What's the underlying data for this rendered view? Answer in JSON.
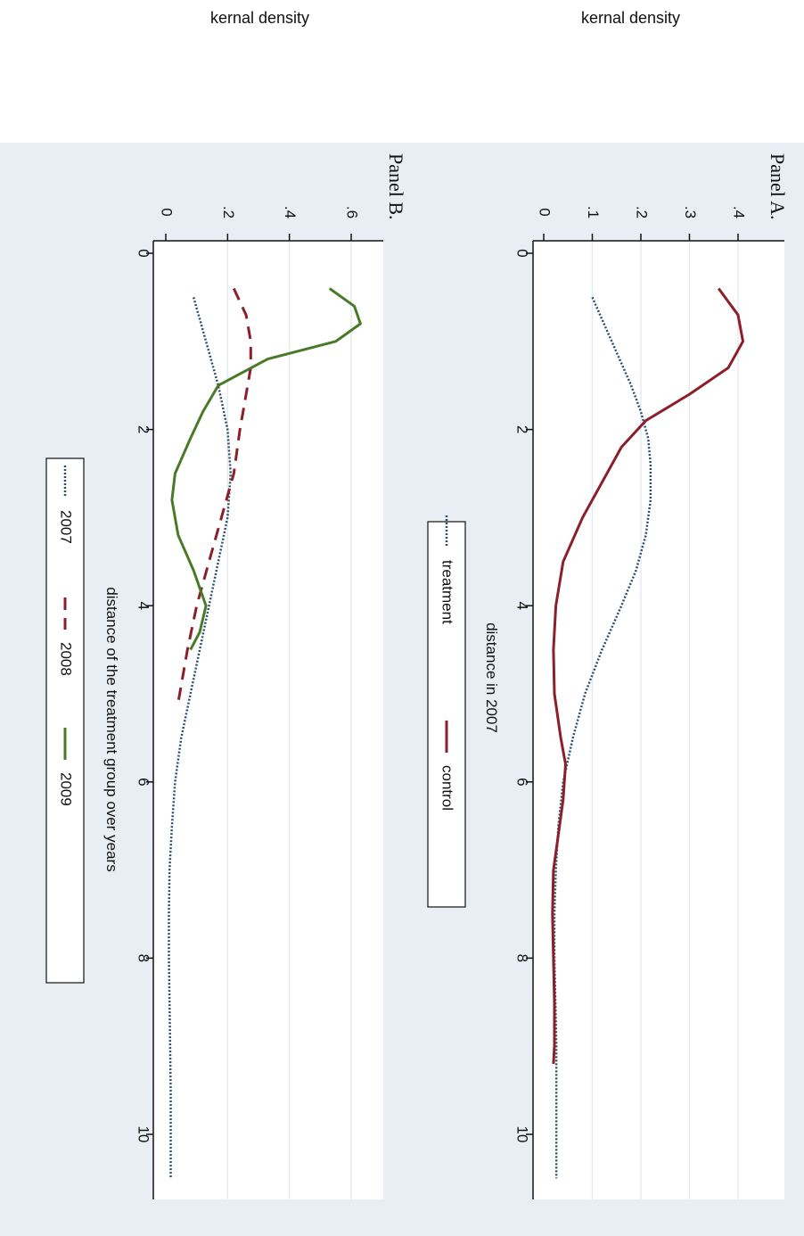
{
  "chart_data": [
    {
      "id": "A",
      "type": "line",
      "title": "Panel A.",
      "xlabel": "distance in 2007",
      "ylabel": "kernal density",
      "xlim": [
        0,
        10.7
      ],
      "ylim": [
        0,
        0.44
      ],
      "x_ticks": [
        0,
        2,
        4,
        6,
        8,
        10
      ],
      "y_ticks": [
        0,
        0.1,
        0.2,
        0.3,
        0.4
      ],
      "y_tick_labels": [
        "0",
        ".1",
        ".2",
        ".3",
        ".4"
      ],
      "grid": true,
      "legend": "bottom",
      "series": [
        {
          "name": "treatment",
          "color": "#2a4d6e",
          "dash": "dotted",
          "x": [
            0.5,
            1.0,
            1.5,
            1.8,
            2.1,
            2.4,
            2.8,
            3.2,
            3.6,
            4.0,
            4.5,
            5.0,
            5.5,
            6.0,
            6.5,
            7.0,
            7.5,
            8.0,
            8.5,
            9.0,
            9.5,
            10.0,
            10.5
          ],
          "y": [
            0.1,
            0.14,
            0.18,
            0.2,
            0.215,
            0.22,
            0.22,
            0.21,
            0.19,
            0.16,
            0.12,
            0.085,
            0.06,
            0.04,
            0.03,
            0.025,
            0.022,
            0.022,
            0.024,
            0.026,
            0.026,
            0.026,
            0.026
          ]
        },
        {
          "name": "control",
          "color": "#8b1f2a",
          "dash": "solid",
          "x": [
            0.4,
            0.7,
            1.0,
            1.3,
            1.6,
            1.9,
            2.2,
            2.6,
            3.0,
            3.5,
            4.0,
            4.5,
            5.0,
            5.5,
            5.8,
            6.2,
            6.6,
            7.0,
            7.5,
            8.0,
            8.5,
            9.0,
            9.2
          ],
          "y": [
            0.36,
            0.4,
            0.41,
            0.38,
            0.3,
            0.21,
            0.16,
            0.12,
            0.08,
            0.04,
            0.025,
            0.02,
            0.022,
            0.035,
            0.045,
            0.04,
            0.03,
            0.02,
            0.018,
            0.02,
            0.022,
            0.022,
            0.02
          ]
        }
      ]
    },
    {
      "id": "B",
      "type": "line",
      "title": "Panel B.",
      "xlabel": "distance of the treatment group over years",
      "ylabel": "kernal density",
      "xlim": [
        0,
        10.7
      ],
      "ylim": [
        0,
        0.72
      ],
      "x_ticks": [
        0,
        2,
        4,
        6,
        8,
        10
      ],
      "y_ticks": [
        0,
        0.2,
        0.4,
        0.6
      ],
      "y_tick_labels": [
        "0",
        ".2",
        ".4",
        ".6"
      ],
      "grid": true,
      "legend": "bottom",
      "series": [
        {
          "name": "2007",
          "color": "#2a4d6e",
          "dash": "dotted",
          "x": [
            0.5,
            1.0,
            1.5,
            2.0,
            2.5,
            3.0,
            3.5,
            4.0,
            4.5,
            5.0,
            5.5,
            6.0,
            6.5,
            7.0,
            7.5,
            8.0,
            8.5,
            9.0,
            9.5,
            10.0,
            10.5
          ],
          "y": [
            0.09,
            0.13,
            0.17,
            0.2,
            0.21,
            0.2,
            0.17,
            0.14,
            0.11,
            0.08,
            0.05,
            0.03,
            0.02,
            0.012,
            0.01,
            0.01,
            0.012,
            0.014,
            0.016,
            0.016,
            0.016
          ]
        },
        {
          "name": "2008",
          "color": "#8b1f2a",
          "dash": "dashed",
          "x": [
            0.4,
            0.7,
            1.0,
            1.3,
            1.6,
            2.0,
            2.5,
            3.0,
            3.5,
            4.0,
            4.5,
            5.1
          ],
          "y": [
            0.22,
            0.26,
            0.275,
            0.275,
            0.26,
            0.24,
            0.22,
            0.18,
            0.14,
            0.1,
            0.07,
            0.04
          ]
        },
        {
          "name": "2009",
          "color": "#4a7a28",
          "dash": "solid",
          "x": [
            0.4,
            0.6,
            0.8,
            1.0,
            1.2,
            1.5,
            1.8,
            2.1,
            2.5,
            2.8,
            3.2,
            3.6,
            4.0,
            4.3,
            4.5
          ],
          "y": [
            0.53,
            0.61,
            0.63,
            0.55,
            0.33,
            0.17,
            0.12,
            0.08,
            0.03,
            0.02,
            0.04,
            0.09,
            0.13,
            0.11,
            0.08
          ]
        }
      ]
    }
  ]
}
